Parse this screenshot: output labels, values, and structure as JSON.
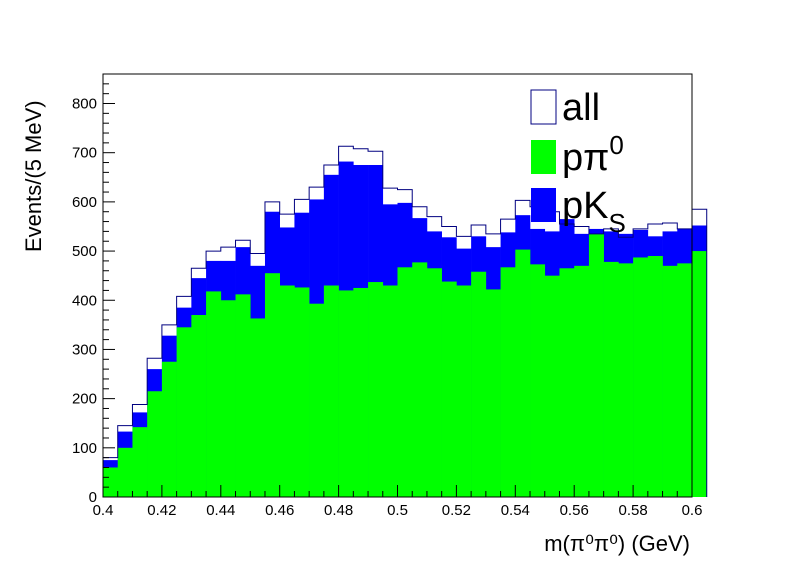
{
  "chart_data": {
    "type": "histogram",
    "xlabel": "m(π⁰π⁰) (GeV)",
    "ylabel": "Events/(5 MeV)",
    "xlim": [
      0.4,
      0.6
    ],
    "ylim": [
      0,
      860
    ],
    "x_ticks": [
      "0.4",
      "0.42",
      "0.44",
      "0.46",
      "0.48",
      "0.5",
      "0.52",
      "0.54",
      "0.56",
      "0.58",
      "0.6"
    ],
    "y_ticks": [
      "0",
      "100",
      "200",
      "300",
      "400",
      "500",
      "600",
      "700",
      "800"
    ],
    "bin_edges_start": 0.4,
    "bin_width": 0.005,
    "legend": {
      "placement": "top-right"
    },
    "series": [
      {
        "name": "all",
        "legend_main": "all",
        "legend_sup": "",
        "legend_sub": "",
        "style": "outline",
        "color": "#000080",
        "values": [
          80,
          145,
          188,
          282,
          350,
          408,
          465,
          500,
          508,
          522,
          495,
          600,
          575,
          605,
          630,
          675,
          713,
          708,
          703,
          628,
          625,
          590,
          570,
          550,
          530,
          553,
          535,
          565,
          603,
          590,
          580,
          555,
          550,
          535,
          545,
          528,
          545,
          555,
          557,
          545,
          585
        ]
      },
      {
        "name": "pπ0",
        "legend_main": "pπ",
        "legend_sup": "0",
        "legend_sub": "",
        "style": "fill",
        "color": "#00ff00",
        "values": [
          60,
          100,
          142,
          215,
          275,
          345,
          370,
          418,
          400,
          412,
          363,
          455,
          430,
          426,
          393,
          430,
          420,
          425,
          437,
          430,
          467,
          477,
          465,
          438,
          430,
          458,
          422,
          467,
          503,
          473,
          450,
          465,
          470,
          535,
          478,
          475,
          487,
          490,
          470,
          475,
          500
        ]
      },
      {
        "name": "pKS",
        "legend_main": "pK",
        "legend_sup": "",
        "legend_sub": "S",
        "style": "fill",
        "color": "#0000ff",
        "values": [
          75,
          133,
          172,
          260,
          328,
          385,
          445,
          480,
          480,
          508,
          470,
          580,
          548,
          578,
          605,
          655,
          682,
          675,
          675,
          595,
          598,
          567,
          540,
          528,
          505,
          530,
          508,
          538,
          573,
          545,
          540,
          565,
          535,
          545,
          540,
          535,
          543,
          530,
          540,
          545,
          552
        ]
      }
    ]
  }
}
